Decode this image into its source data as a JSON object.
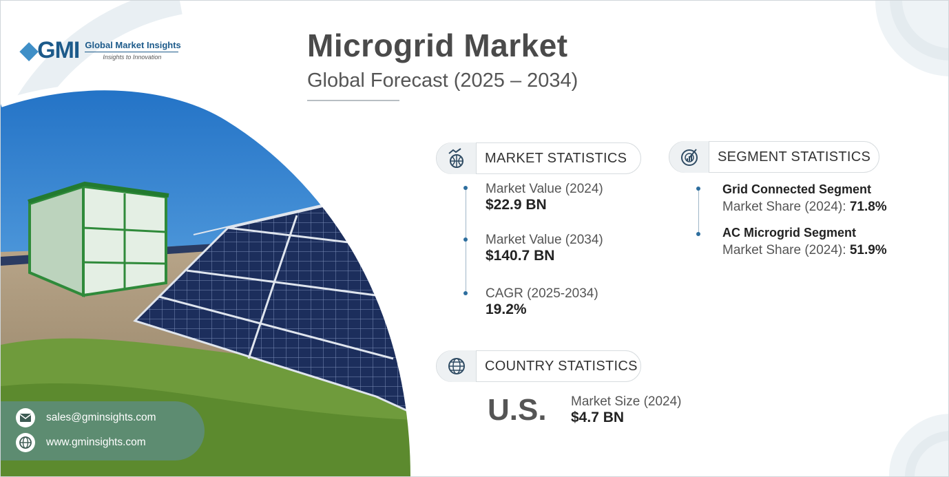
{
  "brand": {
    "logo_mark": "GMI",
    "name": "Global Market Insights",
    "tagline": "Insights to Innovation"
  },
  "header": {
    "title": "Microgrid Market",
    "subtitle": "Global Forecast (2025 – 2034)"
  },
  "market_statistics": {
    "heading": "MARKET STATISTICS",
    "icon": "globe-chart-icon",
    "items": [
      {
        "label": "Market Value (2024)",
        "value": "$22.9 BN"
      },
      {
        "label": "Market Value (2034)",
        "value": "$140.7 BN"
      },
      {
        "label": "CAGR (2025-2034)",
        "value": "19.2%"
      }
    ]
  },
  "segment_statistics": {
    "heading": "SEGMENT STATISTICS",
    "icon": "gauge-icon",
    "items": [
      {
        "title": "Grid Connected Segment",
        "share_label": "Market Share (2024): ",
        "share_value": "71.8%"
      },
      {
        "title": "AC Microgrid Segment",
        "share_label": "Market Share (2024): ",
        "share_value": "51.9%"
      }
    ]
  },
  "country_statistics": {
    "heading": "COUNTRY STATISTICS",
    "icon": "globe-icon",
    "country": "U.S.",
    "label": "Market Size (2024)",
    "value": "$4.7 BN"
  },
  "contact": {
    "email": "sales@gminsights.com",
    "website": "www.gminsights.com"
  },
  "colors": {
    "accent": "#2d6e9e",
    "contact_bg": "#5e8c80",
    "title": "#4a4a4a"
  }
}
